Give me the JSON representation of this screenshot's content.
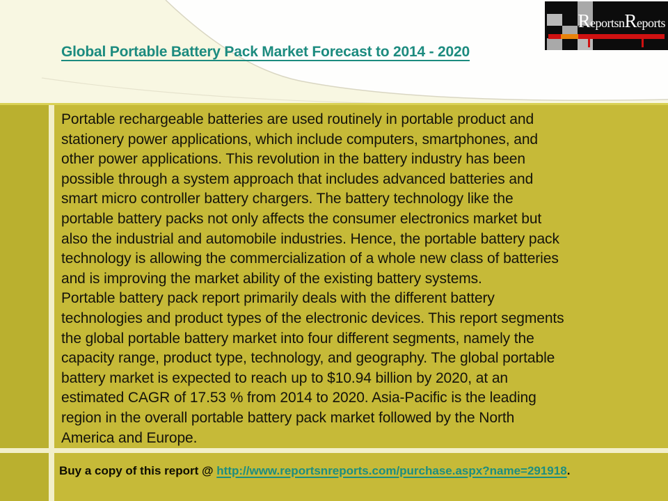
{
  "banner": {
    "title": "Global Portable Battery Pack Market Forecast to 2014 - 2020"
  },
  "logo": {
    "brand_full": "ReportsnReports",
    "brand_r1": "R",
    "brand_part1": "eportsn",
    "brand_r2": "R",
    "brand_part2": "eports"
  },
  "body": {
    "lines": [
      "Portable rechargeable batteries are used routinely in portable product and",
      "stationery power applications, which include computers, smartphones, and",
      "other power applications. This revolution in the battery industry has been",
      "possible through a system approach that includes advanced batteries and",
      "smart micro controller battery chargers. The battery technology like the",
      "portable battery packs not only affects the consumer electronics market but",
      "also the industrial and automobile industries. Hence, the portable battery pack",
      "technology is allowing the commercialization of a whole new class of batteries",
      "and is improving the market ability of the existing battery systems.",
      "Portable battery pack report primarily deals with the different battery",
      "technologies and product types of the electronic devices. This report segments",
      "the global portable battery market into four different segments, namely the",
      "capacity range, product type, technology, and geography. The global portable",
      "battery market is expected to reach up to $10.94 billion by 2020, at an",
      "estimated CAGR of 17.53 % from 2014 to 2020. Asia-Pacific is the leading",
      "region in the overall portable battery pack market followed by the North",
      "America and Europe."
    ]
  },
  "footer": {
    "label": "Buy a copy of this report @ ",
    "url": "http://www.reportsnreports.com/purchase.aspx?name=291918",
    "suffix": "."
  },
  "colors": {
    "banner_bg": "#f8f7e2",
    "content_bg": "#c6ba38",
    "left_column_bg": "#bab02f",
    "divider": "#f2efc9",
    "title_teal": "#1c8b7f",
    "url_teal": "#1d8d80",
    "body_text": "#15130a",
    "logo_bg": "#0c0c0c",
    "logo_grey": "#a9a9a9",
    "logo_red": "#cf1111",
    "logo_orange": "#e8830c"
  }
}
